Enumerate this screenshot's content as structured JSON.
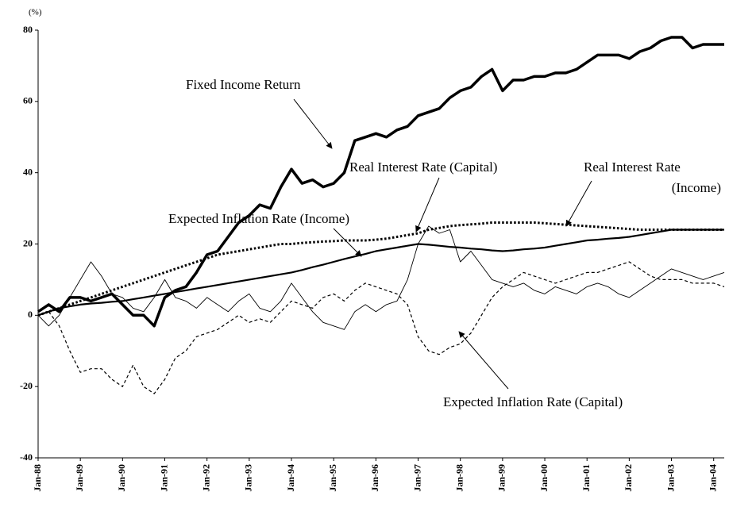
{
  "chart_data": {
    "type": "line",
    "y_label": "(%)",
    "xlim": [
      1988,
      2004.25
    ],
    "ylim": [
      -40,
      80
    ],
    "yticks": [
      -40,
      -20,
      0,
      20,
      40,
      60,
      80
    ],
    "xticks": [
      {
        "value": 1988,
        "label": "Jan-88"
      },
      {
        "value": 1989,
        "label": "Jan-89"
      },
      {
        "value": 1990,
        "label": "Jan-90"
      },
      {
        "value": 1991,
        "label": "Jan-91"
      },
      {
        "value": 1992,
        "label": "Jan-92"
      },
      {
        "value": 1993,
        "label": "Jan-93"
      },
      {
        "value": 1994,
        "label": "Jan-94"
      },
      {
        "value": 1995,
        "label": "Jan-95"
      },
      {
        "value": 1996,
        "label": "Jan-96"
      },
      {
        "value": 1997,
        "label": "Jan-97"
      },
      {
        "value": 1998,
        "label": "Jan-98"
      },
      {
        "value": 1999,
        "label": "Jan-99"
      },
      {
        "value": 2000,
        "label": "Jan-00"
      },
      {
        "value": 2001,
        "label": "Jan-01"
      },
      {
        "value": 2002,
        "label": "Jan-02"
      },
      {
        "value": 2003,
        "label": "Jan-03"
      },
      {
        "value": 2004,
        "label": "Jan-04"
      }
    ],
    "grid": false,
    "x": [
      1988,
      1988.25,
      1988.5,
      1988.75,
      1989,
      1989.25,
      1989.5,
      1989.75,
      1990,
      1990.25,
      1990.5,
      1990.75,
      1991,
      1991.25,
      1991.5,
      1991.75,
      1992,
      1992.25,
      1992.5,
      1992.75,
      1993,
      1993.25,
      1993.5,
      1993.75,
      1994,
      1994.25,
      1994.5,
      1994.75,
      1995,
      1995.25,
      1995.5,
      1995.75,
      1996,
      1996.25,
      1996.5,
      1996.75,
      1997,
      1997.25,
      1997.5,
      1997.75,
      1998,
      1998.25,
      1998.5,
      1998.75,
      1999,
      1999.25,
      1999.5,
      1999.75,
      2000,
      2000.25,
      2000.5,
      2000.75,
      2001,
      2001.25,
      2001.5,
      2001.75,
      2002,
      2002.25,
      2002.5,
      2002.75,
      2003,
      2003.25,
      2003.5,
      2003.75,
      2004,
      2004.25
    ],
    "series": [
      {
        "name": "Fixed Income Return",
        "color": "#000000",
        "line_style": "solid",
        "line_width": 3.5,
        "values": [
          1,
          3,
          1,
          5,
          5,
          4,
          5,
          6,
          3,
          0,
          0,
          -3,
          5,
          7,
          8,
          12,
          17,
          18,
          22,
          26,
          28,
          31,
          30,
          36,
          41,
          37,
          38,
          36,
          37,
          40,
          49,
          50,
          51,
          50,
          52,
          53,
          56,
          57,
          58,
          61,
          63,
          64,
          67,
          69,
          63,
          66,
          66,
          67,
          67,
          68,
          68,
          69,
          71,
          73,
          73,
          73,
          72,
          74,
          75,
          77,
          78,
          78,
          75,
          76,
          76,
          76
        ]
      },
      {
        "name": "Real Interest Rate (Income)",
        "color": "#000000",
        "line_style": "dotted",
        "line_width": 3,
        "values": [
          0,
          1,
          2,
          3,
          4,
          5,
          6,
          7,
          8,
          9,
          10,
          11,
          12,
          13,
          14,
          15,
          16,
          17,
          17.5,
          18,
          18.5,
          19,
          19.5,
          20,
          20,
          20.3,
          20.5,
          20.7,
          20.8,
          21,
          21,
          21,
          21.2,
          21.5,
          22,
          22.5,
          23,
          24,
          24.5,
          25,
          25.3,
          25.5,
          25.7,
          26,
          26,
          26,
          26,
          26,
          25.8,
          25.6,
          25.4,
          25.2,
          25,
          24.8,
          24.6,
          24.4,
          24.2,
          24,
          24,
          24,
          24,
          24,
          24,
          24,
          24,
          24
        ]
      },
      {
        "name": "Expected Inflation Rate (Income)",
        "color": "#000000",
        "line_style": "solid",
        "line_width": 2.2,
        "values": [
          0,
          1,
          2,
          2.5,
          3,
          3.3,
          3.5,
          3.8,
          4,
          4.5,
          5,
          5.5,
          6,
          6.5,
          7,
          7.5,
          8,
          8.5,
          9,
          9.5,
          10,
          10.5,
          11,
          11.5,
          12,
          12.7,
          13.5,
          14.2,
          15,
          15.8,
          16.5,
          17.2,
          18,
          18.5,
          19,
          19.5,
          20,
          19.8,
          19.5,
          19.2,
          19,
          18.7,
          18.5,
          18.2,
          18,
          18.2,
          18.5,
          18.7,
          19,
          19.5,
          20,
          20.5,
          21,
          21.2,
          21.5,
          21.7,
          22,
          22.5,
          23,
          23.5,
          24,
          24,
          24,
          24,
          24,
          24
        ]
      },
      {
        "name": "Real Interest Rate (Capital)",
        "color": "#000000",
        "line_style": "solid",
        "line_width": 0.9,
        "values": [
          0,
          -3,
          0,
          5,
          10,
          15,
          11,
          6,
          5,
          2,
          1,
          5,
          10,
          5,
          4,
          2,
          5,
          3,
          1,
          4,
          6,
          2,
          1,
          4,
          9,
          5,
          1,
          -2,
          -3,
          -4,
          1,
          3,
          1,
          3,
          4,
          10,
          20,
          25,
          23,
          24,
          15,
          18,
          14,
          10,
          9,
          8,
          9,
          7,
          6,
          8,
          7,
          6,
          8,
          9,
          8,
          6,
          5,
          7,
          9,
          11,
          13,
          12,
          11,
          10,
          11,
          12
        ]
      },
      {
        "name": "Expected Inflation Rate (Capital)",
        "color": "#000000",
        "line_style": "dashed",
        "line_width": 1.2,
        "values": [
          0,
          1,
          -3,
          -10,
          -16,
          -15,
          -15,
          -18,
          -20,
          -14,
          -20,
          -22,
          -18,
          -12,
          -10,
          -6,
          -5,
          -4,
          -2,
          0,
          -2,
          -1,
          -2,
          1,
          4,
          3,
          2,
          5,
          6,
          4,
          7,
          9,
          8,
          7,
          6,
          3,
          -6,
          -10,
          -11,
          -9,
          -8,
          -5,
          0,
          5,
          8,
          10,
          12,
          11,
          10,
          9,
          10,
          11,
          12,
          12,
          13,
          14,
          15,
          13,
          11,
          10,
          10,
          10,
          9,
          9,
          9,
          8
        ]
      }
    ],
    "annotations": [
      {
        "lines": [
          "Fixed Income Return"
        ]
      },
      {
        "lines": [
          "Real Interest Rate (Capital)"
        ]
      },
      {
        "lines": [
          "Real Interest Rate",
          "(Income)"
        ]
      },
      {
        "lines": [
          "Expected Inflation Rate (Income)"
        ]
      },
      {
        "lines": [
          "Expected Inflation Rate (Capital)"
        ]
      }
    ]
  }
}
